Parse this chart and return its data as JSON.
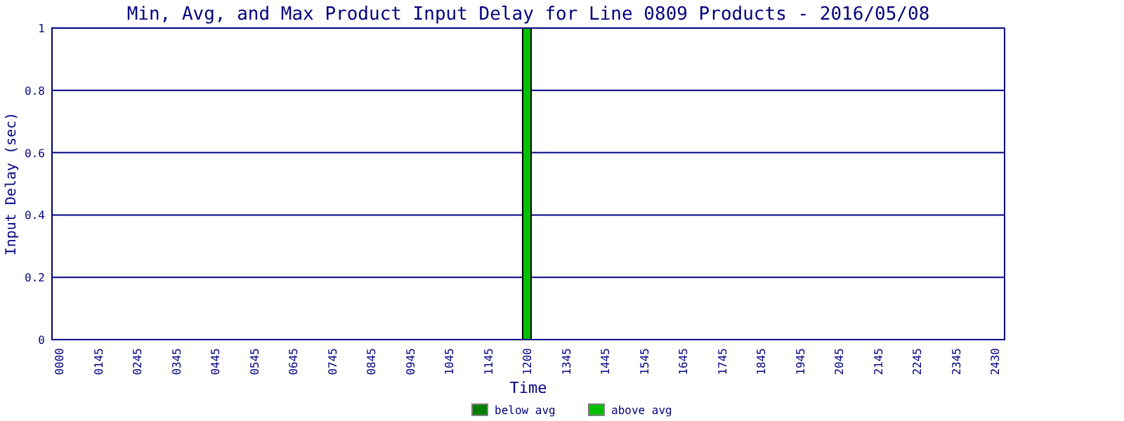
{
  "chart_data": {
    "type": "bar",
    "title": "Min, Avg, and Max Product Input Delay for Line 0809 Products - 2016/05/08",
    "xlabel": "Time",
    "ylabel": "Input Delay (sec)",
    "categories": [
      "0000",
      "0145",
      "0245",
      "0345",
      "0445",
      "0545",
      "0645",
      "0745",
      "0845",
      "0945",
      "1045",
      "1145",
      "1200",
      "1345",
      "1445",
      "1545",
      "1645",
      "1745",
      "1845",
      "1945",
      "2045",
      "2145",
      "2245",
      "2345",
      "2430"
    ],
    "series": [
      {
        "name": "below avg",
        "color": "#008000",
        "values": [
          null,
          null,
          null,
          null,
          null,
          null,
          null,
          null,
          null,
          null,
          null,
          null,
          null,
          null,
          null,
          null,
          null,
          null,
          null,
          null,
          null,
          null,
          null,
          null,
          null
        ]
      },
      {
        "name": "above avg",
        "color": "#00c000",
        "values": [
          null,
          null,
          null,
          null,
          null,
          null,
          null,
          null,
          null,
          null,
          null,
          null,
          1,
          null,
          null,
          null,
          null,
          null,
          null,
          null,
          null,
          null,
          null,
          null,
          null
        ]
      }
    ],
    "ylim": [
      0,
      1
    ],
    "yticks": [
      0,
      0.2,
      0.4,
      0.6,
      0.8,
      1
    ],
    "grid": "y",
    "legend": "bottom"
  }
}
